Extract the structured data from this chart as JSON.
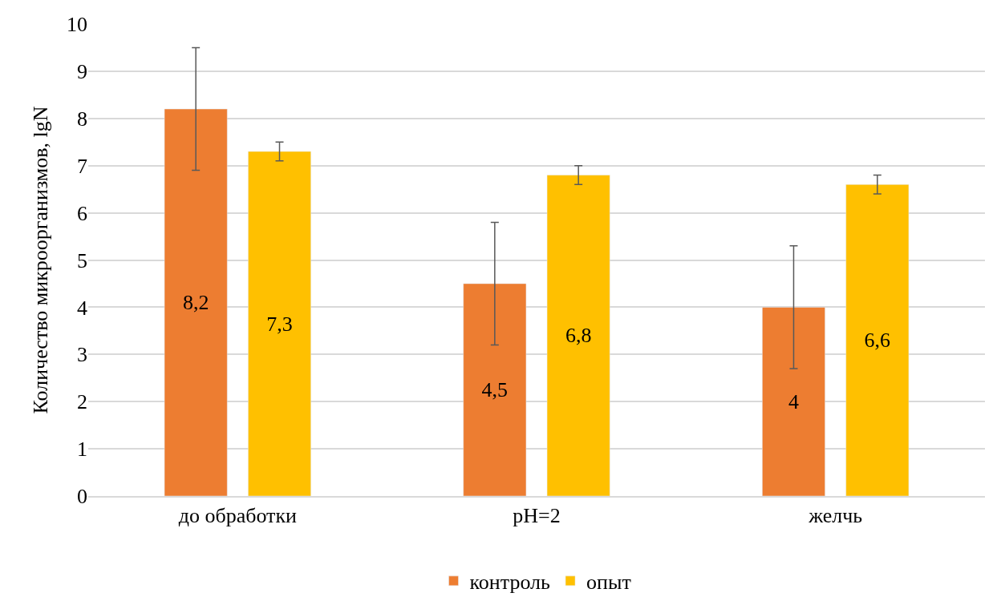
{
  "chart_data": {
    "type": "bar",
    "ylabel": "Количество микроорганизмов, lgN",
    "categories": [
      "до обработки",
      "pH=2",
      "желчь"
    ],
    "series": [
      {
        "name": "контроль",
        "color": "#ed7d31",
        "values": [
          8.2,
          4.5,
          4
        ],
        "errors": [
          1.3,
          1.3,
          1.3
        ],
        "value_labels": [
          "8,2",
          "4,5",
          "4"
        ]
      },
      {
        "name": "опыт",
        "color": "#ffc000",
        "values": [
          7.3,
          6.8,
          6.6
        ],
        "errors": [
          0.2,
          0.2,
          0.2
        ],
        "value_labels": [
          "7,3",
          "6,8",
          "6,6"
        ]
      }
    ],
    "ylim": [
      0,
      10
    ],
    "yticks": [
      0,
      1,
      2,
      3,
      4,
      5,
      6,
      7,
      8,
      9,
      10
    ],
    "grid": "y",
    "legend": "bottom"
  }
}
